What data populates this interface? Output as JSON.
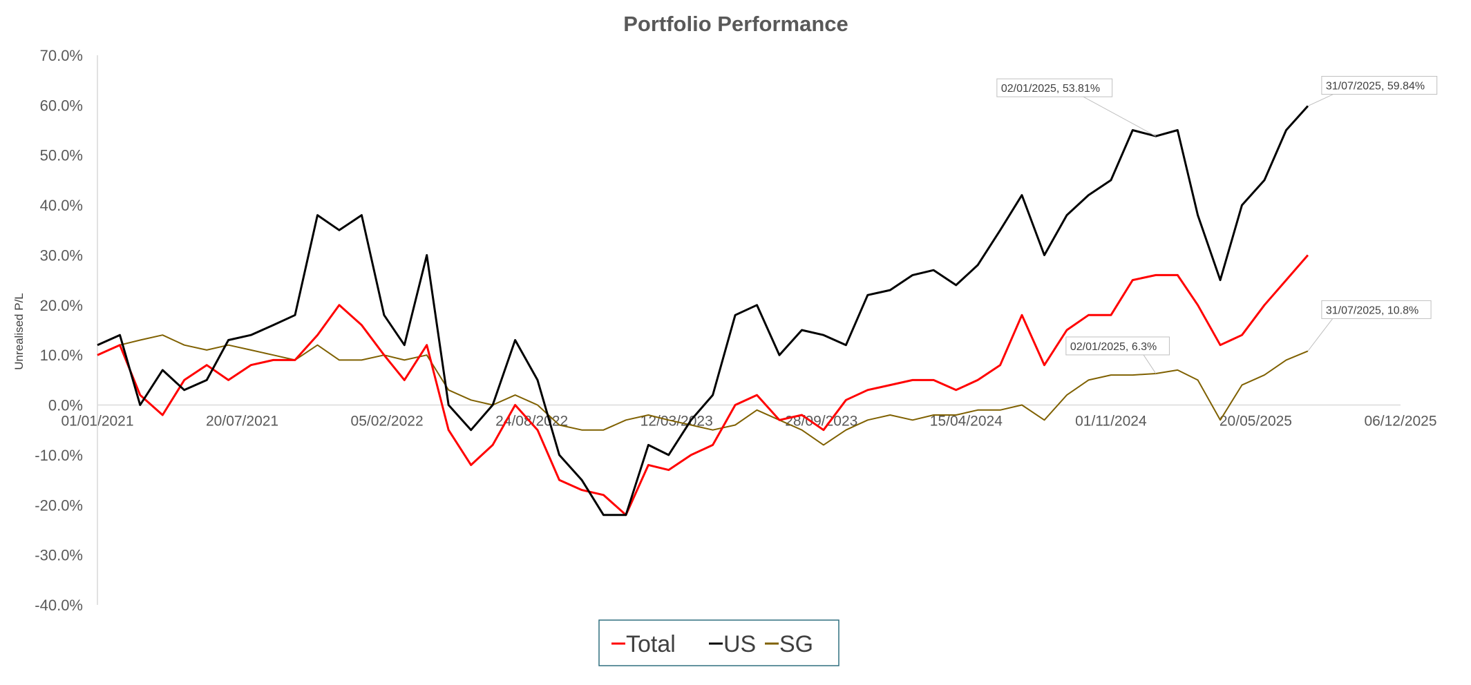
{
  "chart_data": {
    "type": "line",
    "title": "Portfolio Performance",
    "ylabel": "Unrealised P/L",
    "xlabel": "",
    "ylim": [
      -40,
      70
    ],
    "y_unit": "%",
    "y_ticks": [
      "70.0%",
      "60.0%",
      "50.0%",
      "40.0%",
      "30.0%",
      "20.0%",
      "10.0%",
      "0.0%",
      "-10.0%",
      "-20.0%",
      "-30.0%",
      "-40.0%"
    ],
    "x_range": [
      "01/01/2021",
      "06/12/2025"
    ],
    "x_ticks": [
      "01/01/2021",
      "20/07/2021",
      "05/02/2022",
      "24/08/2022",
      "12/03/2023",
      "28/09/2023",
      "15/04/2024",
      "01/11/2024",
      "20/05/2025",
      "06/12/2025"
    ],
    "grid": false,
    "legend_placement": "bottom",
    "x": [
      "01/01/2021",
      "01/02/2021",
      "01/03/2021",
      "01/04/2021",
      "01/05/2021",
      "01/06/2021",
      "01/07/2021",
      "01/08/2021",
      "01/09/2021",
      "01/10/2021",
      "01/11/2021",
      "01/12/2021",
      "01/01/2022",
      "01/02/2022",
      "01/03/2022",
      "01/04/2022",
      "01/05/2022",
      "01/06/2022",
      "01/07/2022",
      "01/08/2022",
      "01/09/2022",
      "01/10/2022",
      "01/11/2022",
      "01/12/2022",
      "01/01/2023",
      "01/02/2023",
      "01/03/2023",
      "01/04/2023",
      "01/05/2023",
      "01/06/2023",
      "01/07/2023",
      "01/08/2023",
      "01/09/2023",
      "01/10/2023",
      "01/11/2023",
      "01/12/2023",
      "01/01/2024",
      "01/02/2024",
      "01/03/2024",
      "01/04/2024",
      "01/05/2024",
      "01/06/2024",
      "01/07/2024",
      "01/08/2024",
      "01/09/2024",
      "01/10/2024",
      "01/11/2024",
      "01/12/2024",
      "02/01/2025",
      "01/02/2025",
      "01/03/2025",
      "01/04/2025",
      "01/05/2025",
      "01/06/2025",
      "01/07/2025",
      "31/07/2025"
    ],
    "series": [
      {
        "name": "Total",
        "color": "#FF0000",
        "values": [
          10,
          12,
          2,
          -2,
          5,
          8,
          5,
          8,
          9,
          9,
          14,
          20,
          16,
          10,
          5,
          12,
          -5,
          -12,
          -8,
          0,
          -5,
          -15,
          -17,
          -18,
          -22,
          -12,
          -13,
          -10,
          -8,
          0,
          2,
          -3,
          -2,
          -5,
          1,
          3,
          4,
          5,
          5,
          3,
          5,
          8,
          18,
          8,
          15,
          18,
          18,
          25,
          26,
          26,
          20,
          12,
          14,
          20,
          25,
          30
        ]
      },
      {
        "name": "US",
        "color": "#000000",
        "values": [
          12,
          14,
          0,
          7,
          3,
          5,
          13,
          14,
          16,
          18,
          38,
          35,
          38,
          18,
          12,
          30,
          0,
          -5,
          0,
          13,
          5,
          -10,
          -15,
          -22,
          -22,
          -8,
          -10,
          -3,
          2,
          18,
          20,
          10,
          15,
          14,
          12,
          22,
          23,
          26,
          27,
          24,
          28,
          35,
          42,
          30,
          38,
          42,
          45,
          55,
          53.81,
          55,
          38,
          25,
          40,
          45,
          55,
          59.84
        ]
      },
      {
        "name": "SG",
        "color": "#7F6000",
        "values": [
          10,
          12,
          13,
          14,
          12,
          11,
          12,
          11,
          10,
          9,
          12,
          9,
          9,
          10,
          9,
          10,
          3,
          1,
          0,
          2,
          0,
          -4,
          -5,
          -5,
          -3,
          -2,
          -3,
          -4,
          -5,
          -4,
          -1,
          -3,
          -5,
          -8,
          -5,
          -3,
          -2,
          -3,
          -2,
          -2,
          -1,
          -1,
          0,
          -3,
          2,
          5,
          6,
          6,
          6.3,
          7,
          5,
          -3,
          4,
          6,
          9,
          10.8
        ]
      }
    ],
    "annotations": [
      {
        "series": "US",
        "x": "02/01/2025",
        "y": 53.81,
        "text": "02/01/2025, 53.81%"
      },
      {
        "series": "US",
        "x": "31/07/2025",
        "y": 59.84,
        "text": "31/07/2025, 59.84%"
      },
      {
        "series": "SG",
        "x": "02/01/2025",
        "y": 6.3,
        "text": "02/01/2025, 6.3%"
      },
      {
        "series": "SG",
        "x": "31/07/2025",
        "y": 10.8,
        "text": "31/07/2025, 10.8%"
      }
    ]
  }
}
